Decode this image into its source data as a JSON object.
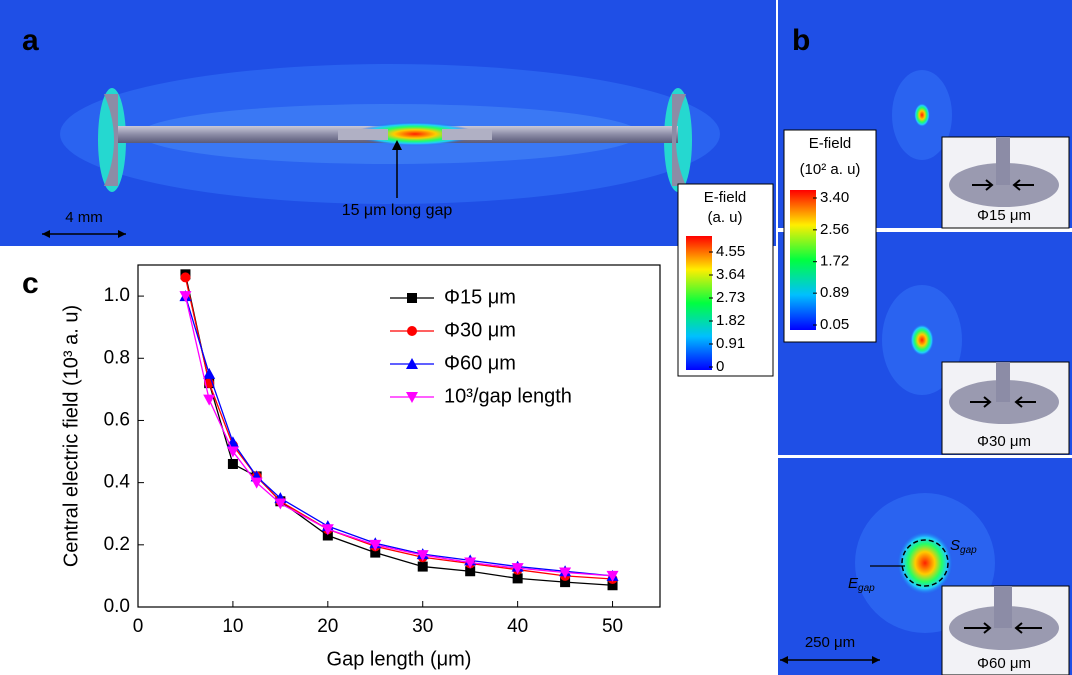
{
  "panel_a": {
    "label": "a",
    "gap_label": "15 μm long gap",
    "scale_label": "4 mm",
    "colorbar": {
      "title": "E-field",
      "unit": "(a. u)",
      "ticks": [
        4.55,
        3.64,
        2.73,
        1.82,
        0.91,
        0
      ]
    }
  },
  "panel_b": {
    "label": "b",
    "colorbar": {
      "title": "E-field",
      "unit": "(10² a. u)",
      "ticks": [
        {
          "value": 3.4,
          "label": "3.40"
        },
        2.56,
        1.72,
        0.89,
        0.05
      ]
    },
    "insets": [
      "Φ15 μm",
      "Φ30 μm",
      "Φ60 μm"
    ],
    "field_symbol": {
      "symbol": "E",
      "subscript": "gap"
    },
    "area_symbol": {
      "symbol": "S",
      "subscript": "gap"
    },
    "scale_label": "250 μm"
  },
  "chart_data": {
    "type": "line",
    "label": "c",
    "x_label": "Gap length (μm)",
    "y_label": "Central electric field (10³ a. u)",
    "x": [
      5,
      7.5,
      10,
      12.5,
      15,
      20,
      25,
      30,
      35,
      40,
      45,
      50
    ],
    "series": [
      {
        "name": "Φ15 μm",
        "color": "#000000",
        "marker": "square",
        "values": [
          1.07,
          0.72,
          0.46,
          0.42,
          0.34,
          0.23,
          0.175,
          0.13,
          0.115,
          0.092,
          0.08,
          0.07
        ]
      },
      {
        "name": "Φ30 μm",
        "color": "#ff0000",
        "marker": "circle",
        "values": [
          1.06,
          0.72,
          0.52,
          0.42,
          0.34,
          0.25,
          0.195,
          0.16,
          0.14,
          0.12,
          0.1,
          0.09
        ]
      },
      {
        "name": "Φ60 μm",
        "color": "#0000ff",
        "marker": "triangle-up",
        "values": [
          1.0,
          0.75,
          0.53,
          0.42,
          0.35,
          0.26,
          0.205,
          0.17,
          0.15,
          0.13,
          0.115,
          0.1
        ]
      },
      {
        "name": "10³/gap length",
        "color": "#ff00ff",
        "marker": "triangle-down",
        "values": [
          1.0,
          0.667,
          0.5,
          0.4,
          0.333,
          0.25,
          0.2,
          0.167,
          0.143,
          0.125,
          0.111,
          0.1
        ]
      }
    ],
    "xlim": [
      0,
      55
    ],
    "ylim": [
      0,
      1.1
    ],
    "xticks": [
      0,
      10,
      20,
      30,
      40,
      50
    ],
    "yticks": [
      {
        "value": 0,
        "label": "0.0"
      },
      0.2,
      0.4,
      0.6,
      0.8,
      {
        "value": 1,
        "label": "1.0"
      }
    ],
    "legend": "upper right",
    "grid": false
  }
}
